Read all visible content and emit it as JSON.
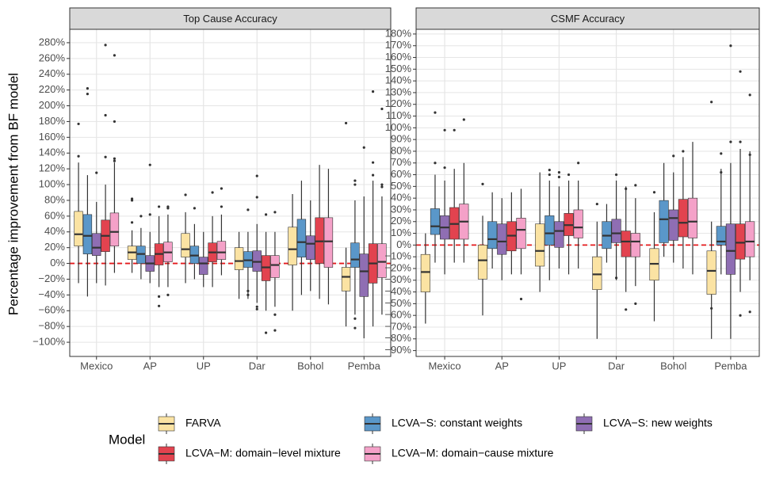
{
  "chart_data": [
    {
      "type": "box",
      "title": "Top Cause Accuracy",
      "categories": [
        "Mexico",
        "AP",
        "UP",
        "Dar",
        "Bohol",
        "Pemba"
      ],
      "ylim": [
        -118,
        297
      ],
      "hline": 0,
      "yticks": [
        {
          "value": -100,
          "label": "−100%"
        },
        {
          "value": -80,
          "label": "−80%"
        },
        {
          "value": -60,
          "label": "−60%"
        },
        {
          "value": -40,
          "label": "−40%"
        },
        {
          "value": -20,
          "label": "−20%"
        },
        {
          "value": 0,
          "label": "0%"
        },
        {
          "value": 20,
          "label": "20%"
        },
        {
          "value": 40,
          "label": "40%"
        },
        {
          "value": 60,
          "label": "60%"
        },
        {
          "value": 80,
          "label": "80%"
        },
        {
          "value": 100,
          "label": "100%"
        },
        {
          "value": 120,
          "label": "120%"
        },
        {
          "value": 140,
          "label": "140%"
        },
        {
          "value": 160,
          "label": "160%"
        },
        {
          "value": 180,
          "label": "180%"
        },
        {
          "value": 200,
          "label": "200%"
        },
        {
          "value": 220,
          "label": "220%"
        },
        {
          "value": 240,
          "label": "240%"
        },
        {
          "value": 260,
          "label": "260%"
        },
        {
          "value": 280,
          "label": "280%"
        }
      ],
      "series": [
        {
          "boxes": [
            {
              "low": -25,
              "q1": 22,
              "median": 37,
              "q3": 66,
              "high": 128,
              "outliers": [
                136,
                177
              ]
            },
            {
              "low": -12,
              "q1": 5,
              "median": 14,
              "q3": 22,
              "high": 42,
              "outliers": [
                52,
                80,
                82
              ]
            },
            {
              "low": -25,
              "q1": 8,
              "median": 18,
              "q3": 38,
              "high": 65,
              "outliers": [
                87
              ]
            },
            {
              "low": -45,
              "q1": -8,
              "median": 3,
              "q3": 20,
              "high": 40,
              "outliers": []
            },
            {
              "low": -60,
              "q1": -2,
              "median": 18,
              "q3": 46,
              "high": 88,
              "outliers": []
            },
            {
              "low": -80,
              "q1": -35,
              "median": -17,
              "q3": -5,
              "high": 20,
              "outliers": [
                178
              ]
            }
          ]
        },
        {
          "boxes": [
            {
              "low": -42,
              "q1": 12,
              "median": 35,
              "q3": 62,
              "high": 112,
              "outliers": [
                215,
                222
              ]
            },
            {
              "low": -20,
              "q1": 0,
              "median": 12,
              "q3": 22,
              "high": 45,
              "outliers": [
                60
              ]
            },
            {
              "low": -20,
              "q1": 0,
              "median": 10,
              "q3": 22,
              "high": 50,
              "outliers": [
                70
              ]
            },
            {
              "low": -45,
              "q1": -5,
              "median": 4,
              "q3": 15,
              "high": 40,
              "outliers": [
                -35,
                -40,
                68
              ]
            },
            {
              "low": -40,
              "q1": 8,
              "median": 27,
              "q3": 56,
              "high": 105,
              "outliers": []
            },
            {
              "low": -65,
              "q1": -5,
              "median": 5,
              "q3": 26,
              "high": 80,
              "outliers": [
                -70,
                -82,
                100,
                105
              ]
            }
          ]
        },
        {
          "boxes": [
            {
              "low": -25,
              "q1": 10,
              "median": 20,
              "q3": 38,
              "high": 78,
              "outliers": [
                115
              ]
            },
            {
              "low": -25,
              "q1": -10,
              "median": 0,
              "q3": 10,
              "high": 40,
              "outliers": [
                62,
                125
              ]
            },
            {
              "low": -30,
              "q1": -14,
              "median": 0,
              "q3": 8,
              "high": 40,
              "outliers": []
            },
            {
              "low": -50,
              "q1": -10,
              "median": 2,
              "q3": 16,
              "high": 50,
              "outliers": [
                -55,
                -58,
                84,
                111
              ]
            },
            {
              "low": -35,
              "q1": 5,
              "median": 25,
              "q3": 35,
              "high": 80,
              "outliers": []
            },
            {
              "low": -95,
              "q1": -42,
              "median": -10,
              "q3": 12,
              "high": 85,
              "outliers": [
                147
              ]
            }
          ]
        },
        {
          "boxes": [
            {
              "low": -28,
              "q1": 15,
              "median": 35,
              "q3": 55,
              "high": 100,
              "outliers": [
                135,
                188,
                277
              ]
            },
            {
              "low": -30,
              "q1": -2,
              "median": 12,
              "q3": 25,
              "high": 60,
              "outliers": [
                -42,
                -54,
                72
              ]
            },
            {
              "low": -30,
              "q1": 2,
              "median": 14,
              "q3": 26,
              "high": 60,
              "outliers": [
                90
              ]
            },
            {
              "low": -60,
              "q1": -22,
              "median": -5,
              "q3": 10,
              "high": 40,
              "outliers": [
                -88,
                62
              ]
            },
            {
              "low": -45,
              "q1": 0,
              "median": 28,
              "q3": 58,
              "high": 125,
              "outliers": []
            },
            {
              "low": -80,
              "q1": -25,
              "median": 0,
              "q3": 25,
              "high": 105,
              "outliers": [
                112,
                128,
                218
              ]
            }
          ]
        },
        {
          "boxes": [
            {
              "low": -12,
              "q1": 22,
              "median": 40,
              "q3": 64,
              "high": 128,
              "outliers": [
                130,
                133,
                180,
                264
              ]
            },
            {
              "low": -30,
              "q1": 2,
              "median": 14,
              "q3": 27,
              "high": 62,
              "outliers": [
                -40,
                70,
                72
              ]
            },
            {
              "low": -15,
              "q1": 5,
              "median": 14,
              "q3": 28,
              "high": 62,
              "outliers": [
                72,
                95
              ]
            },
            {
              "low": -55,
              "q1": -18,
              "median": -2,
              "q3": 10,
              "high": 40,
              "outliers": [
                -65,
                -85,
                65
              ]
            },
            {
              "low": -52,
              "q1": -5,
              "median": 28,
              "q3": 58,
              "high": 120,
              "outliers": []
            },
            {
              "low": -65,
              "q1": -18,
              "median": 2,
              "q3": 25,
              "high": 85,
              "outliers": [
                97,
                100,
                196
              ]
            }
          ]
        }
      ]
    },
    {
      "type": "box",
      "title": "CSMF Accuracy",
      "categories": [
        "Mexico",
        "AP",
        "UP",
        "Dar",
        "Bohol",
        "Pemba"
      ],
      "ylim": [
        -95,
        184
      ],
      "hline": 0,
      "yticks": [
        {
          "value": -90,
          "label": "−90%"
        },
        {
          "value": -80,
          "label": "−80%"
        },
        {
          "value": -70,
          "label": "−70%"
        },
        {
          "value": -60,
          "label": "−60%"
        },
        {
          "value": -50,
          "label": "−50%"
        },
        {
          "value": -40,
          "label": "−40%"
        },
        {
          "value": -30,
          "label": "−30%"
        },
        {
          "value": -20,
          "label": "−20%"
        },
        {
          "value": -10,
          "label": "−10%"
        },
        {
          "value": 0,
          "label": "0%"
        },
        {
          "value": 10,
          "label": "10%"
        },
        {
          "value": 20,
          "label": "20%"
        },
        {
          "value": 30,
          "label": "30%"
        },
        {
          "value": 40,
          "label": "40%"
        },
        {
          "value": 50,
          "label": "50%"
        },
        {
          "value": 60,
          "label": "60%"
        },
        {
          "value": 70,
          "label": "70%"
        },
        {
          "value": 80,
          "label": "80%"
        },
        {
          "value": 90,
          "label": "90%"
        },
        {
          "value": 100,
          "label": "100%"
        },
        {
          "value": 110,
          "label": "110%"
        },
        {
          "value": 120,
          "label": "120%"
        },
        {
          "value": 130,
          "label": "130%"
        },
        {
          "value": 140,
          "label": "140%"
        },
        {
          "value": 150,
          "label": "150%"
        },
        {
          "value": 160,
          "label": "160%"
        },
        {
          "value": 170,
          "label": "170%"
        },
        {
          "value": 180,
          "label": "180%"
        }
      ],
      "series": [
        {
          "boxes": [
            {
              "low": -67,
              "q1": -40,
              "median": -23,
              "q3": -8,
              "high": 10,
              "outliers": []
            },
            {
              "low": -60,
              "q1": -29,
              "median": -13,
              "q3": 0,
              "high": 25,
              "outliers": [
                52
              ]
            },
            {
              "low": -40,
              "q1": -18,
              "median": -5,
              "q3": 18,
              "high": 62,
              "outliers": []
            },
            {
              "low": -80,
              "q1": -38,
              "median": -25,
              "q3": -10,
              "high": 20,
              "outliers": [
                35
              ]
            },
            {
              "low": -65,
              "q1": -30,
              "median": -16,
              "q3": -3,
              "high": 28,
              "outliers": [
                45
              ]
            },
            {
              "low": -80,
              "q1": -42,
              "median": -22,
              "q3": -5,
              "high": 20,
              "outliers": [
                -54,
                122
              ]
            }
          ]
        },
        {
          "boxes": [
            {
              "low": -15,
              "q1": 9,
              "median": 16,
              "q3": 31,
              "high": 60,
              "outliers": [
                70,
                113
              ]
            },
            {
              "low": -20,
              "q1": -3,
              "median": 5,
              "q3": 20,
              "high": 45,
              "outliers": []
            },
            {
              "low": -30,
              "q1": 0,
              "median": 10,
              "q3": 25,
              "high": 55,
              "outliers": [
                60,
                64
              ]
            },
            {
              "low": -15,
              "q1": -3,
              "median": 8,
              "q3": 20,
              "high": 35,
              "outliers": []
            },
            {
              "low": -10,
              "q1": 2,
              "median": 22,
              "q3": 38,
              "high": 70,
              "outliers": []
            },
            {
              "low": -25,
              "q1": 0,
              "median": 3,
              "q3": 16,
              "high": 65,
              "outliers": [
                62,
                78
              ]
            }
          ]
        },
        {
          "boxes": [
            {
              "low": -25,
              "q1": 5,
              "median": 15,
              "q3": 25,
              "high": 55,
              "outliers": [
                66,
                98
              ]
            },
            {
              "low": -30,
              "q1": -8,
              "median": 3,
              "q3": 18,
              "high": 40,
              "outliers": []
            },
            {
              "low": -20,
              "q1": -2,
              "median": 12,
              "q3": 20,
              "high": 50,
              "outliers": [
                58,
                62
              ]
            },
            {
              "low": -30,
              "q1": 2,
              "median": 10,
              "q3": 22,
              "high": 55,
              "outliers": [
                -28,
                60
              ]
            },
            {
              "low": -15,
              "q1": 4,
              "median": 23,
              "q3": 30,
              "high": 62,
              "outliers": [
                76
              ]
            },
            {
              "low": -80,
              "q1": -25,
              "median": -5,
              "q3": 18,
              "high": 70,
              "outliers": [
                88,
                170
              ]
            }
          ]
        },
        {
          "boxes": [
            {
              "low": -15,
              "q1": 5,
              "median": 18,
              "q3": 32,
              "high": 65,
              "outliers": [
                98
              ]
            },
            {
              "low": -25,
              "q1": -5,
              "median": 8,
              "q3": 20,
              "high": 45,
              "outliers": []
            },
            {
              "low": -25,
              "q1": 8,
              "median": 17,
              "q3": 27,
              "high": 55,
              "outliers": [
                60
              ]
            },
            {
              "low": -40,
              "q1": -10,
              "median": 3,
              "q3": 12,
              "high": 50,
              "outliers": [
                -55,
                48
              ]
            },
            {
              "low": -20,
              "q1": 7,
              "median": 19,
              "q3": 39,
              "high": 75,
              "outliers": [
                80
              ]
            },
            {
              "low": -40,
              "q1": -12,
              "median": 2,
              "q3": 18,
              "high": 82,
              "outliers": [
                -60,
                88,
                148
              ]
            }
          ]
        },
        {
          "boxes": [
            {
              "low": -15,
              "q1": 5,
              "median": 20,
              "q3": 35,
              "high": 70,
              "outliers": [
                107
              ]
            },
            {
              "low": -25,
              "q1": -3,
              "median": 13,
              "q3": 23,
              "high": 48,
              "outliers": [
                -46
              ]
            },
            {
              "low": -20,
              "q1": 6,
              "median": 15,
              "q3": 30,
              "high": 55,
              "outliers": [
                70
              ]
            },
            {
              "low": -35,
              "q1": -10,
              "median": 3,
              "q3": 10,
              "high": 40,
              "outliers": [
                -50,
                51
              ]
            },
            {
              "low": -25,
              "q1": 6,
              "median": 20,
              "q3": 40,
              "high": 88,
              "outliers": []
            },
            {
              "low": -30,
              "q1": -10,
              "median": 3,
              "q3": 20,
              "high": 80,
              "outliers": [
                -57,
                77,
                128
              ]
            }
          ]
        }
      ]
    }
  ],
  "y_axis_label": "Percentage improvement from BF model",
  "legend": {
    "title": "Model",
    "items": [
      {
        "name": "FARVA",
        "color": "#fbe3a3"
      },
      {
        "name": "LCVA−S: constant weights",
        "color": "#5a97c9"
      },
      {
        "name": "LCVA−S: new weights",
        "color": "#8f6eb3"
      },
      {
        "name": "LCVA−M: domain−level mixture",
        "color": "#e2434f"
      },
      {
        "name": "LCVA−M: domain−cause mixture",
        "color": "#f4a1c8"
      }
    ]
  }
}
